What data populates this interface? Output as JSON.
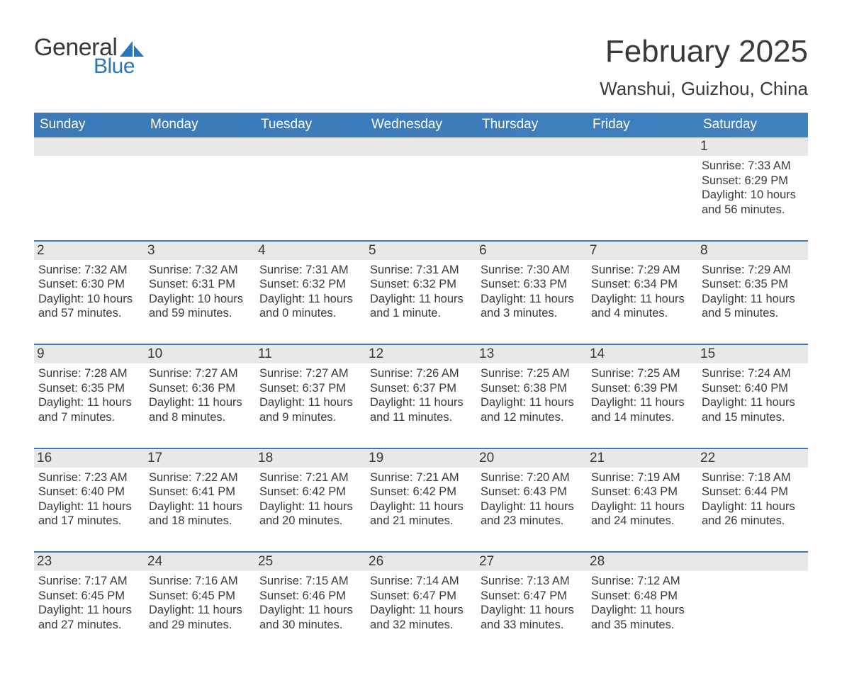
{
  "brand": {
    "general": "General",
    "blue": "Blue",
    "sail_color": "#2b75bd",
    "text_color": "#3a3a3a"
  },
  "title": {
    "month_year": "February 2025",
    "location": "Wanshui, Guizhou, China"
  },
  "colors": {
    "header_bg": "#3b79b7",
    "header_text": "#ffffff",
    "daynum_bg": "#e8e8e8",
    "week_border": "#3b79b7",
    "body_text": "#3a3a3a",
    "page_bg": "#ffffff"
  },
  "days_of_week": [
    "Sunday",
    "Monday",
    "Tuesday",
    "Wednesday",
    "Thursday",
    "Friday",
    "Saturday"
  ],
  "weeks": [
    [
      {
        "num": "",
        "sunrise": "",
        "sunset": "",
        "daylight": ""
      },
      {
        "num": "",
        "sunrise": "",
        "sunset": "",
        "daylight": ""
      },
      {
        "num": "",
        "sunrise": "",
        "sunset": "",
        "daylight": ""
      },
      {
        "num": "",
        "sunrise": "",
        "sunset": "",
        "daylight": ""
      },
      {
        "num": "",
        "sunrise": "",
        "sunset": "",
        "daylight": ""
      },
      {
        "num": "",
        "sunrise": "",
        "sunset": "",
        "daylight": ""
      },
      {
        "num": "1",
        "sunrise": "Sunrise: 7:33 AM",
        "sunset": "Sunset: 6:29 PM",
        "daylight": "Daylight: 10 hours and 56 minutes."
      }
    ],
    [
      {
        "num": "2",
        "sunrise": "Sunrise: 7:32 AM",
        "sunset": "Sunset: 6:30 PM",
        "daylight": "Daylight: 10 hours and 57 minutes."
      },
      {
        "num": "3",
        "sunrise": "Sunrise: 7:32 AM",
        "sunset": "Sunset: 6:31 PM",
        "daylight": "Daylight: 10 hours and 59 minutes."
      },
      {
        "num": "4",
        "sunrise": "Sunrise: 7:31 AM",
        "sunset": "Sunset: 6:32 PM",
        "daylight": "Daylight: 11 hours and 0 minutes."
      },
      {
        "num": "5",
        "sunrise": "Sunrise: 7:31 AM",
        "sunset": "Sunset: 6:32 PM",
        "daylight": "Daylight: 11 hours and 1 minute."
      },
      {
        "num": "6",
        "sunrise": "Sunrise: 7:30 AM",
        "sunset": "Sunset: 6:33 PM",
        "daylight": "Daylight: 11 hours and 3 minutes."
      },
      {
        "num": "7",
        "sunrise": "Sunrise: 7:29 AM",
        "sunset": "Sunset: 6:34 PM",
        "daylight": "Daylight: 11 hours and 4 minutes."
      },
      {
        "num": "8",
        "sunrise": "Sunrise: 7:29 AM",
        "sunset": "Sunset: 6:35 PM",
        "daylight": "Daylight: 11 hours and 5 minutes."
      }
    ],
    [
      {
        "num": "9",
        "sunrise": "Sunrise: 7:28 AM",
        "sunset": "Sunset: 6:35 PM",
        "daylight": "Daylight: 11 hours and 7 minutes."
      },
      {
        "num": "10",
        "sunrise": "Sunrise: 7:27 AM",
        "sunset": "Sunset: 6:36 PM",
        "daylight": "Daylight: 11 hours and 8 minutes."
      },
      {
        "num": "11",
        "sunrise": "Sunrise: 7:27 AM",
        "sunset": "Sunset: 6:37 PM",
        "daylight": "Daylight: 11 hours and 9 minutes."
      },
      {
        "num": "12",
        "sunrise": "Sunrise: 7:26 AM",
        "sunset": "Sunset: 6:37 PM",
        "daylight": "Daylight: 11 hours and 11 minutes."
      },
      {
        "num": "13",
        "sunrise": "Sunrise: 7:25 AM",
        "sunset": "Sunset: 6:38 PM",
        "daylight": "Daylight: 11 hours and 12 minutes."
      },
      {
        "num": "14",
        "sunrise": "Sunrise: 7:25 AM",
        "sunset": "Sunset: 6:39 PM",
        "daylight": "Daylight: 11 hours and 14 minutes."
      },
      {
        "num": "15",
        "sunrise": "Sunrise: 7:24 AM",
        "sunset": "Sunset: 6:40 PM",
        "daylight": "Daylight: 11 hours and 15 minutes."
      }
    ],
    [
      {
        "num": "16",
        "sunrise": "Sunrise: 7:23 AM",
        "sunset": "Sunset: 6:40 PM",
        "daylight": "Daylight: 11 hours and 17 minutes."
      },
      {
        "num": "17",
        "sunrise": "Sunrise: 7:22 AM",
        "sunset": "Sunset: 6:41 PM",
        "daylight": "Daylight: 11 hours and 18 minutes."
      },
      {
        "num": "18",
        "sunrise": "Sunrise: 7:21 AM",
        "sunset": "Sunset: 6:42 PM",
        "daylight": "Daylight: 11 hours and 20 minutes."
      },
      {
        "num": "19",
        "sunrise": "Sunrise: 7:21 AM",
        "sunset": "Sunset: 6:42 PM",
        "daylight": "Daylight: 11 hours and 21 minutes."
      },
      {
        "num": "20",
        "sunrise": "Sunrise: 7:20 AM",
        "sunset": "Sunset: 6:43 PM",
        "daylight": "Daylight: 11 hours and 23 minutes."
      },
      {
        "num": "21",
        "sunrise": "Sunrise: 7:19 AM",
        "sunset": "Sunset: 6:43 PM",
        "daylight": "Daylight: 11 hours and 24 minutes."
      },
      {
        "num": "22",
        "sunrise": "Sunrise: 7:18 AM",
        "sunset": "Sunset: 6:44 PM",
        "daylight": "Daylight: 11 hours and 26 minutes."
      }
    ],
    [
      {
        "num": "23",
        "sunrise": "Sunrise: 7:17 AM",
        "sunset": "Sunset: 6:45 PM",
        "daylight": "Daylight: 11 hours and 27 minutes."
      },
      {
        "num": "24",
        "sunrise": "Sunrise: 7:16 AM",
        "sunset": "Sunset: 6:45 PM",
        "daylight": "Daylight: 11 hours and 29 minutes."
      },
      {
        "num": "25",
        "sunrise": "Sunrise: 7:15 AM",
        "sunset": "Sunset: 6:46 PM",
        "daylight": "Daylight: 11 hours and 30 minutes."
      },
      {
        "num": "26",
        "sunrise": "Sunrise: 7:14 AM",
        "sunset": "Sunset: 6:47 PM",
        "daylight": "Daylight: 11 hours and 32 minutes."
      },
      {
        "num": "27",
        "sunrise": "Sunrise: 7:13 AM",
        "sunset": "Sunset: 6:47 PM",
        "daylight": "Daylight: 11 hours and 33 minutes."
      },
      {
        "num": "28",
        "sunrise": "Sunrise: 7:12 AM",
        "sunset": "Sunset: 6:48 PM",
        "daylight": "Daylight: 11 hours and 35 minutes."
      },
      {
        "num": "",
        "sunrise": "",
        "sunset": "",
        "daylight": ""
      }
    ]
  ]
}
